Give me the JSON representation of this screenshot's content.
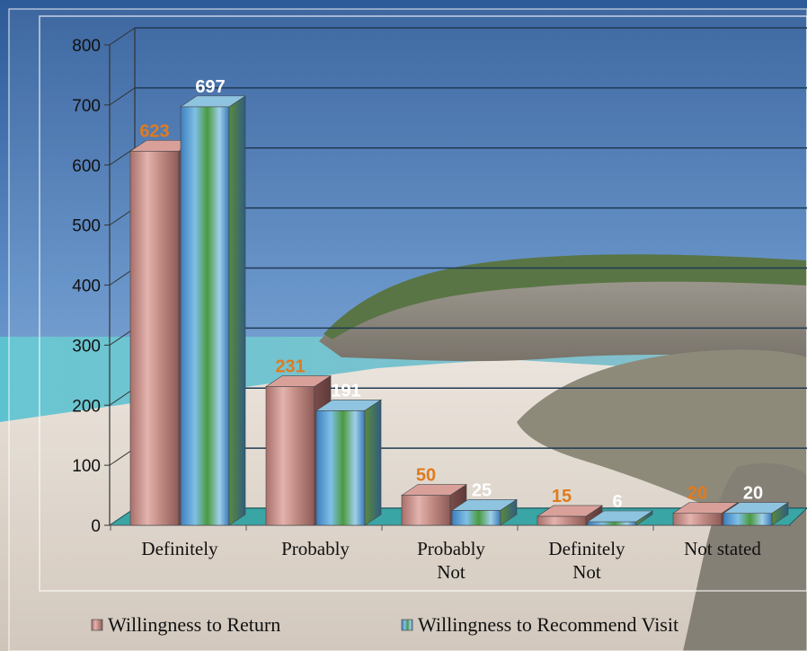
{
  "chart_data": {
    "type": "bar",
    "categories": [
      [
        "Definitely"
      ],
      [
        "Probably"
      ],
      [
        "Probably",
        "Not"
      ],
      [
        "Definitely",
        "Not"
      ],
      [
        "Not stated"
      ]
    ],
    "series": [
      {
        "name": "Willingness to Return",
        "values": [
          623,
          231,
          50,
          15,
          20
        ],
        "color": "#c98a7a",
        "label_color": "#e07b1f"
      },
      {
        "name": "Willingness to Recommend Visit",
        "values": [
          697,
          191,
          25,
          6,
          20
        ],
        "color": "#4f8fc0",
        "label_color": "#ffffff"
      }
    ],
    "ylim": [
      0,
      800
    ],
    "yticks": [
      0,
      100,
      200,
      300,
      400,
      500,
      600,
      700,
      800
    ],
    "grid": true,
    "legend_position": "bottom",
    "style": "3d-bar-beach-photo-background"
  },
  "colors": {
    "sky_top": "#2e5f9e",
    "sky_bottom": "#9cc0e0",
    "sea": "#4fb2c4",
    "sand": "#e6ddd2",
    "rock": "#8b8478",
    "vegetation": "#4d6b35",
    "floor": "#3aa5a5",
    "gridline": "#1f3a55"
  }
}
